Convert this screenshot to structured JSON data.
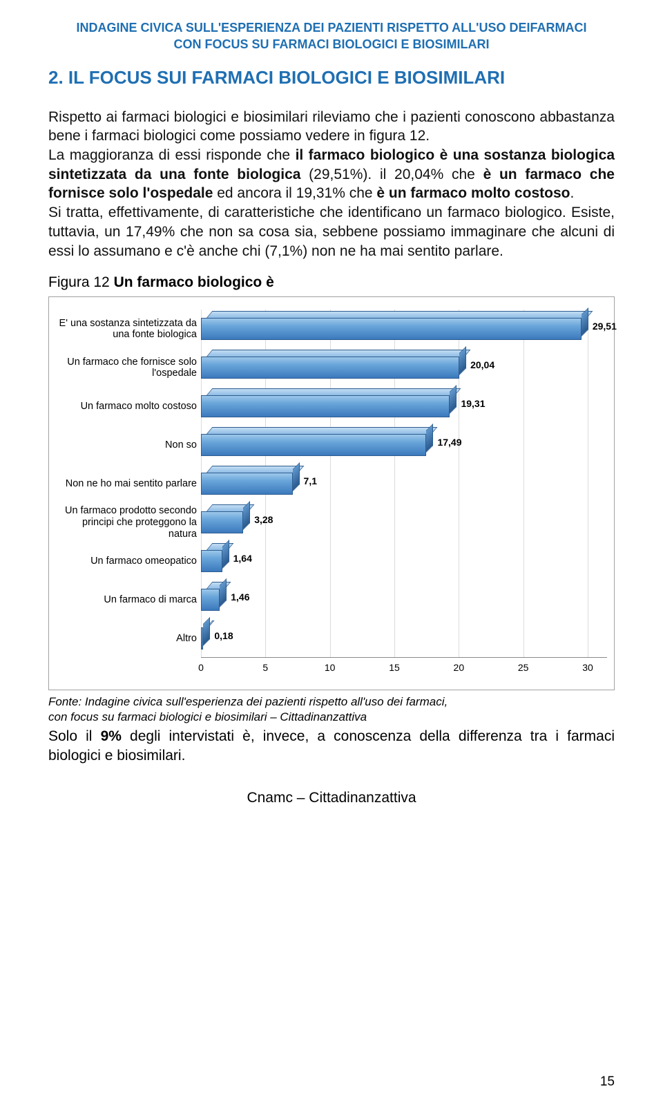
{
  "header": {
    "line1": "INDAGINE CIVICA SULL'ESPERIENZA DEI PAZIENTI RISPETTO ALL'USO DEIFARMACI",
    "line2": "CON FOCUS SU FARMACI BIOLOGICI E BIOSIMILARI"
  },
  "section_title": "2. IL FOCUS SUI FARMACI BIOLOGICI E BIOSIMILARI",
  "paragraph": {
    "p1": "Rispetto ai farmaci biologici e biosimilari rileviamo che i pazienti conoscono abbastanza bene i farmaci biologici  come possiamo vedere in figura 12.",
    "p2a": "La maggioranza di essi risponde che ",
    "p2b_bold": "il farmaco biologico è una sostanza biologica sintetizzata da una fonte biologica",
    "p2c": " (29,51%). il 20,04% che ",
    "p2d_bold": "è un farmaco che fornisce solo l'ospedale",
    "p2e": " ed ancora il 19,31% che ",
    "p2f_bold": "è un farmaco molto costoso",
    "p2g": ".",
    "p3": "Si tratta, effettivamente, di caratteristiche che identificano un farmaco biologico. Esiste, tuttavia, un 17,49% che non sa cosa sia, sebbene possiamo immaginare che alcuni di essi lo assumano e c'è anche chi (7,1%) non ne ha mai sentito parlare."
  },
  "figure_caption_prefix": "Figura 12 ",
  "figure_caption_bold": "Un farmaco biologico è",
  "chart": {
    "type": "horizontal-bar-3d",
    "xmin": 0,
    "xmax": 30,
    "xtick_step": 5,
    "xticks": [
      0,
      5,
      10,
      15,
      20,
      25,
      30
    ],
    "bar_color_top": "#9dc7ea",
    "bar_color_bottom": "#3b79bd",
    "bar_border": "#2d5c8f",
    "grid_color": "#999999",
    "background": "#ffffff",
    "label_fontsize": 14.5,
    "value_fontsize": 14,
    "categories": [
      {
        "label": "E' una sostanza sintetizzata da una fonte biologica",
        "value": 29.51,
        "value_str": "29,51"
      },
      {
        "label": "Un farmaco che fornisce solo l'ospedale",
        "value": 20.04,
        "value_str": "20,04"
      },
      {
        "label": "Un farmaco molto costoso",
        "value": 19.31,
        "value_str": "19,31"
      },
      {
        "label": "Non so",
        "value": 17.49,
        "value_str": "17,49"
      },
      {
        "label": "Non ne ho mai sentito parlare",
        "value": 7.1,
        "value_str": "7,1"
      },
      {
        "label": "Un farmaco prodotto secondo principi che proteggono la natura",
        "value": 3.28,
        "value_str": "3,28"
      },
      {
        "label": "Un farmaco omeopatico",
        "value": 1.64,
        "value_str": "1,64"
      },
      {
        "label": "Un farmaco di marca",
        "value": 1.46,
        "value_str": "1,46"
      },
      {
        "label": "Altro",
        "value": 0.18,
        "value_str": "0,18"
      }
    ]
  },
  "source": {
    "line1": "Fonte: Indagine civica sull'esperienza dei pazienti rispetto all'uso dei farmaci,",
    "line2": "con focus su farmaci  biologici e biosimilari – Cittadinanzattiva"
  },
  "after": {
    "t1": "Solo il ",
    "t2_bold": "9%",
    "t3": " degli intervistati è, invece, a conoscenza della differenza tra i farmaci biologici e biosimilari."
  },
  "footer": "Cnamc – Cittadinanzattiva",
  "page_number": "15"
}
